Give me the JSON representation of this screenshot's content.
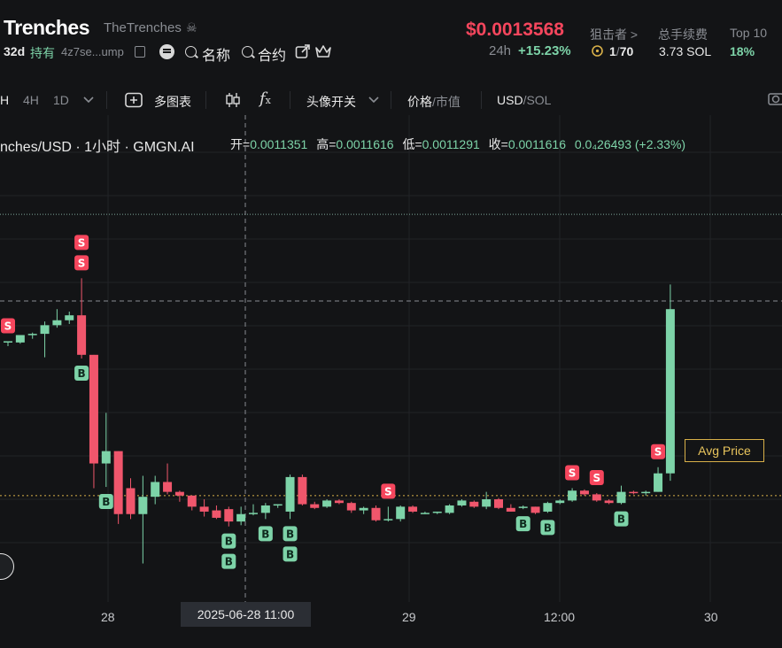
{
  "header": {
    "token_name": "Trenches",
    "handle": "TheTrenches",
    "age": "32d",
    "hold_label": "持有",
    "address": "4z7se...ump",
    "name_search_label": "名称",
    "contract_search_label": "合约",
    "price": "$0.0013568",
    "change_period": "24h",
    "change_value": "+15.23%",
    "snipers_label": "狙击者 >",
    "snipers_value_current": "1",
    "snipers_value_sep": "/",
    "snipers_value_total": "70",
    "fees_label": "总手续费",
    "fees_value": "3.73 SOL",
    "top10_label": "Top 10",
    "top10_value": "18%"
  },
  "toolbar": {
    "interval_partial": "H",
    "interval_4h": "4H",
    "interval_1d": "1D",
    "multi_chart": "多图表",
    "avatar_toggle": "头像开关",
    "price_label": "价格",
    "sep1": "/",
    "mcap_label": "市值",
    "usd_label": "USD",
    "sep2": "/",
    "sol_label": "SOL"
  },
  "chart_header": {
    "title": "nches/USD · 1小时 · GMGN.AI",
    "open_label": "开=",
    "open_value": "0.0011351",
    "high_label": "高=",
    "high_value": "0.0011616",
    "low_label": "低=",
    "low_value": "0.0011291",
    "close_label": "收=",
    "close_value": "0.0011616",
    "change_value": "0.0₄26493 (+2.33%)"
  },
  "avg_price_label": "Avg Price",
  "crosshair_time": "2025-06-28   11:00",
  "colors": {
    "up": "#7dd3a8",
    "down": "#f0566c",
    "background": "#131416",
    "grid": "#212327",
    "avg_line": "#d8b049",
    "price_red": "#f6465d"
  },
  "chart_data": {
    "type": "candlestick",
    "title": "nches/USD · 1小时 · GMGN.AI",
    "interval": "1h",
    "x_tick_labels": [
      "28",
      "29",
      "12:00",
      "30"
    ],
    "y_range_usd": [
      0.00105,
      0.00143
    ],
    "current_price": 0.0013568,
    "avg_price": 0.001129,
    "candles": [
      {
        "o": 0.001253,
        "h": 0.001254,
        "l": 0.00125,
        "c": 0.001254
      },
      {
        "o": 0.001253,
        "h": 0.001259,
        "l": 0.001252,
        "c": 0.001259
      },
      {
        "o": 0.001259,
        "h": 0.001261,
        "l": 0.001256,
        "c": 0.00126
      },
      {
        "o": 0.00126,
        "h": 0.00127,
        "l": 0.001241,
        "c": 0.001267
      },
      {
        "o": 0.001267,
        "h": 0.00128,
        "l": 0.001265,
        "c": 0.001271
      },
      {
        "o": 0.001271,
        "h": 0.001278,
        "l": 0.001268,
        "c": 0.001275
      },
      {
        "o": 0.001275,
        "h": 0.001305,
        "l": 0.00124,
        "c": 0.001243
      },
      {
        "o": 0.001243,
        "h": 0.001243,
        "l": 0.001135,
        "c": 0.001155
      },
      {
        "o": 0.001155,
        "h": 0.001196,
        "l": 0.001136,
        "c": 0.001165
      },
      {
        "o": 0.001165,
        "h": 0.001165,
        "l": 0.001106,
        "c": 0.001114
      },
      {
        "o": 0.001135,
        "h": 0.001143,
        "l": 0.00111,
        "c": 0.001114
      },
      {
        "o": 0.001114,
        "h": 0.001145,
        "l": 0.001074,
        "c": 0.001128
      },
      {
        "o": 0.001128,
        "h": 0.001145,
        "l": 0.001122,
        "c": 0.00114
      },
      {
        "o": 0.00114,
        "h": 0.001155,
        "l": 0.00113,
        "c": 0.001132
      },
      {
        "o": 0.001132,
        "h": 0.001133,
        "l": 0.001124,
        "c": 0.001129
      },
      {
        "o": 0.001129,
        "h": 0.001129,
        "l": 0.001117,
        "c": 0.00112
      },
      {
        "o": 0.00112,
        "h": 0.001126,
        "l": 0.001112,
        "c": 0.001116
      },
      {
        "o": 0.001117,
        "h": 0.001121,
        "l": 0.00111,
        "c": 0.001111
      },
      {
        "o": 0.001118,
        "h": 0.00112,
        "l": 0.001104,
        "c": 0.001108
      },
      {
        "o": 0.001108,
        "h": 0.00112,
        "l": 0.001105,
        "c": 0.001114
      },
      {
        "o": 0.001114,
        "h": 0.001122,
        "l": 0.001113,
        "c": 0.001115
      },
      {
        "o": 0.001115,
        "h": 0.001123,
        "l": 0.00111,
        "c": 0.001121
      },
      {
        "o": 0.001121,
        "h": 0.001122,
        "l": 0.001119,
        "c": 0.001122
      },
      {
        "o": 0.001116,
        "h": 0.001146,
        "l": 0.00111,
        "c": 0.001144
      },
      {
        "o": 0.001144,
        "h": 0.001146,
        "l": 0.001121,
        "c": 0.001122
      },
      {
        "o": 0.001122,
        "h": 0.001124,
        "l": 0.001118,
        "c": 0.001119
      },
      {
        "o": 0.00112,
        "h": 0.001126,
        "l": 0.001119,
        "c": 0.001125
      },
      {
        "o": 0.001125,
        "h": 0.001126,
        "l": 0.001122,
        "c": 0.001123
      },
      {
        "o": 0.001123,
        "h": 0.001124,
        "l": 0.001115,
        "c": 0.001117
      },
      {
        "o": 0.001117,
        "h": 0.00112,
        "l": 0.001114,
        "c": 0.001119
      },
      {
        "o": 0.001119,
        "h": 0.001121,
        "l": 0.001108,
        "c": 0.001109
      },
      {
        "o": 0.001109,
        "h": 0.00112,
        "l": 0.001108,
        "c": 0.00111
      },
      {
        "o": 0.00111,
        "h": 0.001121,
        "l": 0.001108,
        "c": 0.00112
      },
      {
        "o": 0.00112,
        "h": 0.001121,
        "l": 0.001115,
        "c": 0.001116
      },
      {
        "o": 0.001115,
        "h": 0.001116,
        "l": 0.001114,
        "c": 0.001115
      },
      {
        "o": 0.001115,
        "h": 0.001116,
        "l": 0.001114,
        "c": 0.001116
      },
      {
        "o": 0.001115,
        "h": 0.001122,
        "l": 0.001114,
        "c": 0.001121
      },
      {
        "o": 0.001121,
        "h": 0.001126,
        "l": 0.00112,
        "c": 0.001125
      },
      {
        "o": 0.001124,
        "h": 0.001125,
        "l": 0.001119,
        "c": 0.00112
      },
      {
        "o": 0.00112,
        "h": 0.001132,
        "l": 0.001118,
        "c": 0.001126
      },
      {
        "o": 0.001126,
        "h": 0.001127,
        "l": 0.001118,
        "c": 0.001119
      },
      {
        "o": 0.001119,
        "h": 0.001122,
        "l": 0.001116,
        "c": 0.001116
      },
      {
        "o": 0.001119,
        "h": 0.001121,
        "l": 0.001118,
        "c": 0.00112
      },
      {
        "o": 0.00112,
        "h": 0.00112,
        "l": 0.001114,
        "c": 0.001115
      },
      {
        "o": 0.001116,
        "h": 0.001124,
        "l": 0.001115,
        "c": 0.001123
      },
      {
        "o": 0.001123,
        "h": 0.001126,
        "l": 0.001122,
        "c": 0.001125
      },
      {
        "o": 0.001125,
        "h": 0.001135,
        "l": 0.001124,
        "c": 0.001133
      },
      {
        "o": 0.001133,
        "h": 0.001134,
        "l": 0.001129,
        "c": 0.00113
      },
      {
        "o": 0.00113,
        "h": 0.001131,
        "l": 0.001124,
        "c": 0.001125
      },
      {
        "o": 0.001125,
        "h": 0.001126,
        "l": 0.001122,
        "c": 0.001123
      },
      {
        "o": 0.001123,
        "h": 0.001137,
        "l": 0.001122,
        "c": 0.001132
      },
      {
        "o": 0.001132,
        "h": 0.001133,
        "l": 0.00113,
        "c": 0.001131
      },
      {
        "o": 0.001131,
        "h": 0.001133,
        "l": 0.001129,
        "c": 0.001132
      },
      {
        "o": 0.001132,
        "h": 0.001152,
        "l": 0.001132,
        "c": 0.001147
      },
      {
        "o": 0.001147,
        "h": 0.0013,
        "l": 0.001141,
        "c": 0.00128
      }
    ],
    "markers": [
      {
        "label": "S",
        "candle": 6,
        "kind": "sell"
      },
      {
        "label": "S",
        "candle": 6,
        "kind": "sell"
      },
      {
        "label": "S",
        "candle": 0,
        "kind": "sell"
      },
      {
        "label": "B",
        "candle": 6,
        "kind": "buy"
      },
      {
        "label": "B",
        "candle": 8,
        "kind": "buy"
      },
      {
        "label": "B",
        "candle": 18,
        "kind": "buy"
      },
      {
        "label": "B",
        "candle": 18,
        "kind": "buy"
      },
      {
        "label": "B",
        "candle": 21,
        "kind": "buy"
      },
      {
        "label": "B",
        "candle": 23,
        "kind": "buy"
      },
      {
        "label": "B",
        "candle": 23,
        "kind": "buy"
      },
      {
        "label": "S",
        "candle": 31,
        "kind": "sell"
      },
      {
        "label": "B",
        "candle": 42,
        "kind": "buy"
      },
      {
        "label": "B",
        "candle": 44,
        "kind": "buy"
      },
      {
        "label": "S",
        "candle": 46,
        "kind": "sell"
      },
      {
        "label": "S",
        "candle": 48,
        "kind": "sell"
      },
      {
        "label": "B",
        "candle": 50,
        "kind": "buy"
      },
      {
        "label": "S",
        "candle": 53,
        "kind": "sell"
      }
    ]
  }
}
